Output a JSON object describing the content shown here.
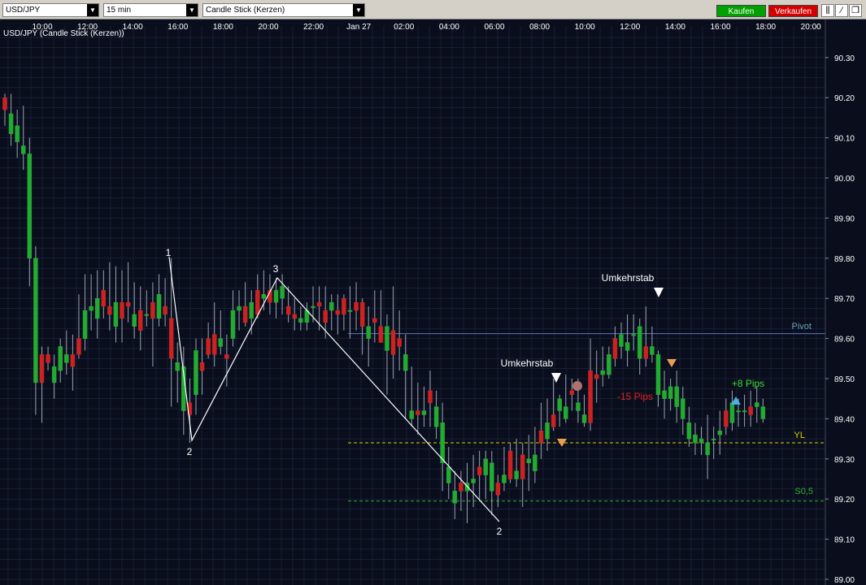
{
  "toolbar": {
    "symbol": "USD/JPY",
    "interval": "15 min",
    "chart_style": "Candle Stick (Kerzen)",
    "buy_label": "Kaufen",
    "sell_label": "Verkaufen",
    "buy_color": "#00a000",
    "sell_color": "#d40000"
  },
  "chart_data": {
    "type": "candlestick",
    "title": "USD/JPY (Candle Stick (Kerzen))",
    "instrument": "USD/JPY",
    "timeframe": "15 min",
    "y_ticks": [
      "90.30",
      "90.20",
      "90.10",
      "90.00",
      "89.90",
      "89.80",
      "89.70",
      "89.60",
      "89.50",
      "89.40",
      "89.30",
      "89.20",
      "89.10",
      "89.00"
    ],
    "ylim": [
      89.0,
      90.35
    ],
    "x_ticks": [
      "10:00",
      "12:00",
      "14:00",
      "16:00",
      "18:00",
      "20:00",
      "22:00",
      "Jan 27",
      "02:00",
      "04:00",
      "06:00",
      "08:00",
      "10:00",
      "12:00",
      "14:00",
      "16:00",
      "18:00",
      "20:00"
    ],
    "grid": true,
    "bull_color": "#22aa33",
    "bear_color": "#cc2222",
    "candles": [
      [
        90.2,
        90.17,
        90.18,
        90.13,
        90.21
      ],
      [
        90.11,
        90.16,
        90.17,
        90.08,
        90.21
      ],
      [
        90.09,
        90.13,
        90.14,
        90.05,
        90.17
      ],
      [
        90.06,
        90.08,
        90.13,
        90.02,
        90.18
      ],
      [
        89.8,
        90.06,
        90.06,
        89.73,
        90.1
      ],
      [
        89.49,
        89.8,
        89.8,
        89.41,
        89.83
      ],
      [
        89.56,
        89.49,
        89.56,
        89.39,
        89.58
      ],
      [
        89.56,
        89.54,
        89.58,
        89.52,
        89.58
      ],
      [
        89.49,
        89.53,
        89.56,
        89.45,
        89.56
      ],
      [
        89.52,
        89.58,
        89.58,
        89.49,
        89.6
      ],
      [
        89.54,
        89.56,
        89.59,
        89.51,
        89.62
      ],
      [
        89.56,
        89.53,
        89.58,
        89.47,
        89.61
      ],
      [
        89.6,
        89.56,
        89.65,
        89.55,
        89.71
      ],
      [
        89.6,
        89.67,
        89.7,
        89.57,
        89.76
      ],
      [
        89.67,
        89.68,
        89.71,
        89.62,
        89.76
      ],
      [
        89.65,
        89.7,
        89.72,
        89.6,
        89.77
      ],
      [
        89.72,
        89.68,
        89.74,
        89.65,
        89.77
      ],
      [
        89.68,
        89.66,
        89.72,
        89.62,
        89.79
      ],
      [
        89.63,
        89.69,
        89.71,
        89.59,
        89.78
      ],
      [
        89.69,
        89.65,
        89.71,
        89.59,
        89.77
      ],
      [
        89.69,
        89.68,
        89.73,
        89.64,
        89.79
      ],
      [
        89.63,
        89.66,
        89.69,
        89.6,
        89.74
      ],
      [
        89.67,
        89.62,
        89.69,
        89.57,
        89.73
      ],
      [
        89.66,
        89.66,
        89.69,
        89.63,
        89.72
      ],
      [
        89.69,
        89.65,
        89.7,
        89.53,
        89.74
      ],
      [
        89.65,
        89.71,
        89.72,
        89.63,
        89.76
      ],
      [
        89.68,
        89.66,
        89.73,
        89.63,
        89.75
      ],
      [
        89.65,
        89.55,
        89.69,
        89.43,
        89.8
      ],
      [
        89.52,
        89.54,
        89.56,
        89.44,
        89.59
      ],
      [
        89.42,
        89.53,
        89.53,
        89.36,
        89.58
      ],
      [
        89.44,
        89.41,
        89.48,
        89.34,
        89.5
      ],
      [
        89.46,
        89.57,
        89.57,
        89.41,
        89.6
      ],
      [
        89.54,
        89.52,
        89.58,
        89.46,
        89.6
      ],
      [
        89.6,
        89.56,
        89.63,
        89.55,
        89.64
      ],
      [
        89.61,
        89.56,
        89.66,
        89.53,
        89.69
      ],
      [
        89.58,
        89.6,
        89.63,
        89.56,
        89.67
      ],
      [
        89.56,
        89.55,
        89.59,
        89.48,
        89.61
      ],
      [
        89.6,
        89.67,
        89.7,
        89.58,
        89.72
      ],
      [
        89.67,
        89.68,
        89.72,
        89.62,
        89.72
      ],
      [
        89.68,
        89.64,
        89.7,
        89.63,
        89.74
      ],
      [
        89.65,
        89.69,
        89.71,
        89.61,
        89.72
      ],
      [
        89.72,
        89.66,
        89.76,
        89.65,
        89.76
      ],
      [
        89.7,
        89.71,
        89.74,
        89.67,
        89.77
      ],
      [
        89.72,
        89.69,
        89.75,
        89.66,
        89.76
      ],
      [
        89.69,
        89.72,
        89.73,
        89.65,
        89.75
      ],
      [
        89.7,
        89.73,
        89.73,
        89.66,
        89.76
      ],
      [
        89.68,
        89.66,
        89.71,
        89.64,
        89.73
      ],
      [
        89.66,
        89.65,
        89.69,
        89.62,
        89.7
      ],
      [
        89.64,
        89.65,
        89.67,
        89.62,
        89.68
      ],
      [
        89.64,
        89.67,
        89.68,
        89.62,
        89.69
      ],
      [
        89.68,
        89.68,
        89.71,
        89.64,
        89.73
      ],
      [
        89.69,
        89.68,
        89.72,
        89.62,
        89.73
      ],
      [
        89.67,
        89.64,
        89.68,
        89.6,
        89.73
      ],
      [
        89.67,
        89.69,
        89.69,
        89.62,
        89.71
      ],
      [
        89.67,
        89.66,
        89.7,
        89.61,
        89.71
      ],
      [
        89.7,
        89.66,
        89.71,
        89.62,
        89.71
      ],
      [
        89.67,
        89.67,
        89.69,
        89.6,
        89.73
      ],
      [
        89.69,
        89.67,
        89.7,
        89.62,
        89.74
      ],
      [
        89.69,
        89.63,
        89.69,
        89.56,
        89.7
      ],
      [
        89.6,
        89.63,
        89.64,
        89.53,
        89.68
      ],
      [
        89.65,
        89.64,
        89.69,
        89.59,
        89.72
      ],
      [
        89.63,
        89.59,
        89.66,
        89.59,
        89.72
      ],
      [
        89.57,
        89.63,
        89.63,
        89.46,
        89.66
      ],
      [
        89.62,
        89.56,
        89.68,
        89.5,
        89.73
      ],
      [
        89.6,
        89.58,
        89.63,
        89.52,
        89.67
      ],
      [
        89.52,
        89.56,
        89.57,
        89.4,
        89.61
      ],
      [
        89.4,
        89.42,
        89.47,
        89.38,
        89.53
      ],
      [
        89.42,
        89.41,
        89.46,
        89.36,
        89.49
      ],
      [
        89.41,
        89.42,
        89.44,
        89.38,
        89.48
      ],
      [
        89.47,
        89.44,
        89.5,
        89.38,
        89.52
      ],
      [
        89.38,
        89.43,
        89.44,
        89.35,
        89.47
      ],
      [
        89.29,
        89.39,
        89.39,
        89.22,
        89.44
      ],
      [
        89.24,
        89.28,
        89.29,
        89.2,
        89.33
      ],
      [
        89.19,
        89.22,
        89.26,
        89.15,
        89.27
      ],
      [
        89.24,
        89.22,
        89.25,
        89.17,
        89.27
      ],
      [
        89.22,
        89.24,
        89.27,
        89.14,
        89.29
      ],
      [
        89.24,
        89.25,
        89.27,
        89.18,
        89.31
      ],
      [
        89.28,
        89.26,
        89.29,
        89.2,
        89.32
      ],
      [
        89.26,
        89.3,
        89.32,
        89.2,
        89.32
      ],
      [
        89.22,
        89.29,
        89.31,
        89.16,
        89.32
      ],
      [
        89.24,
        89.21,
        89.25,
        89.18,
        89.26
      ],
      [
        89.24,
        89.26,
        89.31,
        89.22,
        89.33
      ],
      [
        89.32,
        89.25,
        89.34,
        89.24,
        89.34
      ],
      [
        89.25,
        89.27,
        89.32,
        89.23,
        89.35
      ],
      [
        89.31,
        89.25,
        89.31,
        89.18,
        89.34
      ],
      [
        89.29,
        89.3,
        89.33,
        89.22,
        89.36
      ],
      [
        89.27,
        89.31,
        89.35,
        89.24,
        89.38
      ],
      [
        89.37,
        89.34,
        89.39,
        89.3,
        89.44
      ],
      [
        89.35,
        89.39,
        89.42,
        89.32,
        89.45
      ],
      [
        89.41,
        89.38,
        89.46,
        89.37,
        89.5
      ],
      [
        89.42,
        89.45,
        89.46,
        89.38,
        89.46
      ],
      [
        89.4,
        89.43,
        89.47,
        89.39,
        89.51
      ],
      [
        89.47,
        89.46,
        89.49,
        89.42,
        89.5
      ],
      [
        89.42,
        89.44,
        89.46,
        89.39,
        89.5
      ],
      [
        89.39,
        89.41,
        89.43,
        89.38,
        89.46
      ],
      [
        89.52,
        89.39,
        89.58,
        89.37,
        89.6
      ],
      [
        89.51,
        89.5,
        89.53,
        89.44,
        89.57
      ],
      [
        89.51,
        89.52,
        89.55,
        89.48,
        89.58
      ],
      [
        89.51,
        89.56,
        89.56,
        89.5,
        89.58
      ],
      [
        89.6,
        89.55,
        89.63,
        89.53,
        89.63
      ],
      [
        89.58,
        89.61,
        89.64,
        89.55,
        89.64
      ],
      [
        89.57,
        89.59,
        89.6,
        89.53,
        89.66
      ],
      [
        89.61,
        89.61,
        89.62,
        89.57,
        89.66
      ],
      [
        89.55,
        89.63,
        89.63,
        89.51,
        89.65
      ],
      [
        89.58,
        89.55,
        89.6,
        89.53,
        89.68
      ],
      [
        89.56,
        89.58,
        89.62,
        89.54,
        89.63
      ],
      [
        89.46,
        89.56,
        89.56,
        89.43,
        89.57
      ],
      [
        89.45,
        89.47,
        89.51,
        89.4,
        89.52
      ],
      [
        89.45,
        89.48,
        89.5,
        89.42,
        89.5
      ],
      [
        89.43,
        89.48,
        89.5,
        89.39,
        89.52
      ],
      [
        89.4,
        89.45,
        89.46,
        89.36,
        89.48
      ],
      [
        89.35,
        89.39,
        89.41,
        89.33,
        89.43
      ],
      [
        89.34,
        89.36,
        89.37,
        89.31,
        89.39
      ],
      [
        89.34,
        89.35,
        89.37,
        89.31,
        89.38
      ],
      [
        89.31,
        89.34,
        89.36,
        89.25,
        89.41
      ],
      [
        89.35,
        89.35,
        89.37,
        89.3,
        89.38
      ],
      [
        89.36,
        89.37,
        89.4,
        89.31,
        89.42
      ],
      [
        89.42,
        89.38,
        89.44,
        89.36,
        89.45
      ],
      [
        89.39,
        89.44,
        89.45,
        89.37,
        89.47
      ],
      [
        89.42,
        89.42,
        89.44,
        89.38,
        89.45
      ],
      [
        89.42,
        89.42,
        89.44,
        89.38,
        89.46
      ],
      [
        89.43,
        89.41,
        89.45,
        89.38,
        89.47
      ],
      [
        89.43,
        89.44,
        89.46,
        89.39,
        89.48
      ],
      [
        89.4,
        89.43,
        89.44,
        89.39,
        89.45
      ]
    ]
  },
  "labels": {
    "point1": "1",
    "point2a": "2",
    "point3": "3",
    "point2b": "2",
    "umkehrstab1": "Umkehrstab",
    "umkehrstab2": "Umkehrstab",
    "loss": "-15 Pips",
    "gain": "+8 Pips",
    "pivot": "Pivot",
    "yl": "YL",
    "s05": "S0,5"
  },
  "levels": {
    "pivot": 89.612,
    "yl": 89.34,
    "s05": 89.195
  },
  "colors": {
    "background": "#0a0e1c",
    "grid": "#1e2a44",
    "pivot_line": "#5a78c8",
    "pivot_label": "#6aa0b8",
    "yl": "#d8d000",
    "s05": "#2fae2f",
    "loss": "#e02020",
    "gain": "#33dd33"
  }
}
